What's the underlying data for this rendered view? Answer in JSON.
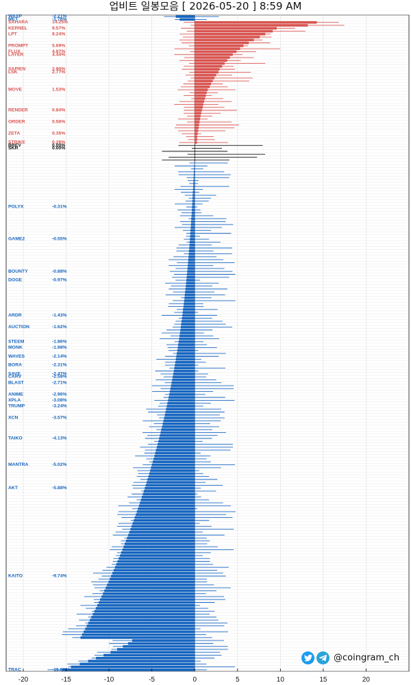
{
  "title": "업비트 일봉모음 [ 2026-05-20 ]  8:59 AM",
  "brand": {
    "handle": "@coingram_ch",
    "icons": [
      "twitter-icon",
      "telegram-icon"
    ]
  },
  "colors": {
    "up": "#d9534f",
    "down": "#1565c0",
    "flat": "#111111",
    "wick_up": "#d9534f",
    "wick_down": "#1565c0"
  },
  "chart_data": {
    "type": "bar",
    "xlim": [
      -22,
      25
    ],
    "xticks": [
      -20,
      -15,
      -10,
      -5,
      0,
      5,
      10,
      15,
      20
    ],
    "grid": true,
    "visible_labels": [
      {
        "name": "WAXP",
        "pct": "-2.21%"
      },
      {
        "name": "MET",
        "pct": "-1.76%"
      },
      {
        "name": "SAHARA",
        "pct": "14.25%"
      },
      {
        "name": "KERNEL",
        "pct": "9.57%"
      },
      {
        "name": "LPT",
        "pct": "8.24%"
      },
      {
        "name": "PROMPT",
        "pct": "5.69%"
      },
      {
        "name": "FLUX",
        "pct": "4.87%"
      },
      {
        "name": "LAYER",
        "pct": "4.44%"
      },
      {
        "name": "SAPIEN",
        "pct": "2.90%"
      },
      {
        "name": "LSK",
        "pct": "2.77%"
      },
      {
        "name": "MOVE",
        "pct": "1.53%"
      },
      {
        "name": "RENDER",
        "pct": "0.84%"
      },
      {
        "name": "ORDER",
        "pct": "0.56%"
      },
      {
        "name": "ZETA",
        "pct": "0.35%"
      },
      {
        "name": "STRIKE",
        "pct": "0.26%"
      },
      {
        "name": "BREV",
        "pct": "0.00%"
      },
      {
        "name": "SKR",
        "pct": "0.00%"
      },
      {
        "name": "POLYX",
        "pct": "-0.31%"
      },
      {
        "name": "GAME2",
        "pct": "-0.55%"
      },
      {
        "name": "BOUNTY",
        "pct": "-0.88%"
      },
      {
        "name": "DOGE",
        "pct": "-0.97%"
      },
      {
        "name": "ARDR",
        "pct": "-1.43%"
      },
      {
        "name": "AUCTION",
        "pct": "-1.62%"
      },
      {
        "name": "STEEM",
        "pct": "-1.86%"
      },
      {
        "name": "MONK",
        "pct": "-1.98%"
      },
      {
        "name": "WAVES",
        "pct": "-2.14%"
      },
      {
        "name": "BORA",
        "pct": "-2.31%"
      },
      {
        "name": "SAVE",
        "pct": "-2.47%"
      },
      {
        "name": "CARV",
        "pct": "-2.58%"
      },
      {
        "name": "BLAST",
        "pct": "-2.71%"
      },
      {
        "name": "ANIME",
        "pct": "-2.96%"
      },
      {
        "name": "XPLA",
        "pct": "-3.08%"
      },
      {
        "name": "TRUMP",
        "pct": "-3.24%"
      },
      {
        "name": "XCN",
        "pct": "-3.57%"
      },
      {
        "name": "TAIKO",
        "pct": "-4.13%"
      },
      {
        "name": "MANTRA",
        "pct": "-5.02%"
      },
      {
        "name": "AKT",
        "pct": "-5.88%"
      },
      {
        "name": "KAITO",
        "pct": "-9.74%"
      },
      {
        "name": "TRAC",
        "pct": "-15.50%"
      }
    ],
    "up_values": [
      14.25,
      13.2,
      9.57,
      9.1,
      8.24,
      7.6,
      6.9,
      6.3,
      5.69,
      5.3,
      4.87,
      4.44,
      4.1,
      3.8,
      3.5,
      3.2,
      2.9,
      2.77,
      2.5,
      2.3,
      2.1,
      1.9,
      1.75,
      1.53,
      1.4,
      1.3,
      1.2,
      1.1,
      1.0,
      0.94,
      0.84,
      0.76,
      0.68,
      0.62,
      0.56,
      0.5,
      0.45,
      0.4,
      0.35,
      0.3,
      0.28,
      0.26
    ],
    "flat_count": 6,
    "down_range": [
      -0.05,
      -15.5
    ],
    "top_rows": [
      -2.21,
      -1.76
    ]
  }
}
